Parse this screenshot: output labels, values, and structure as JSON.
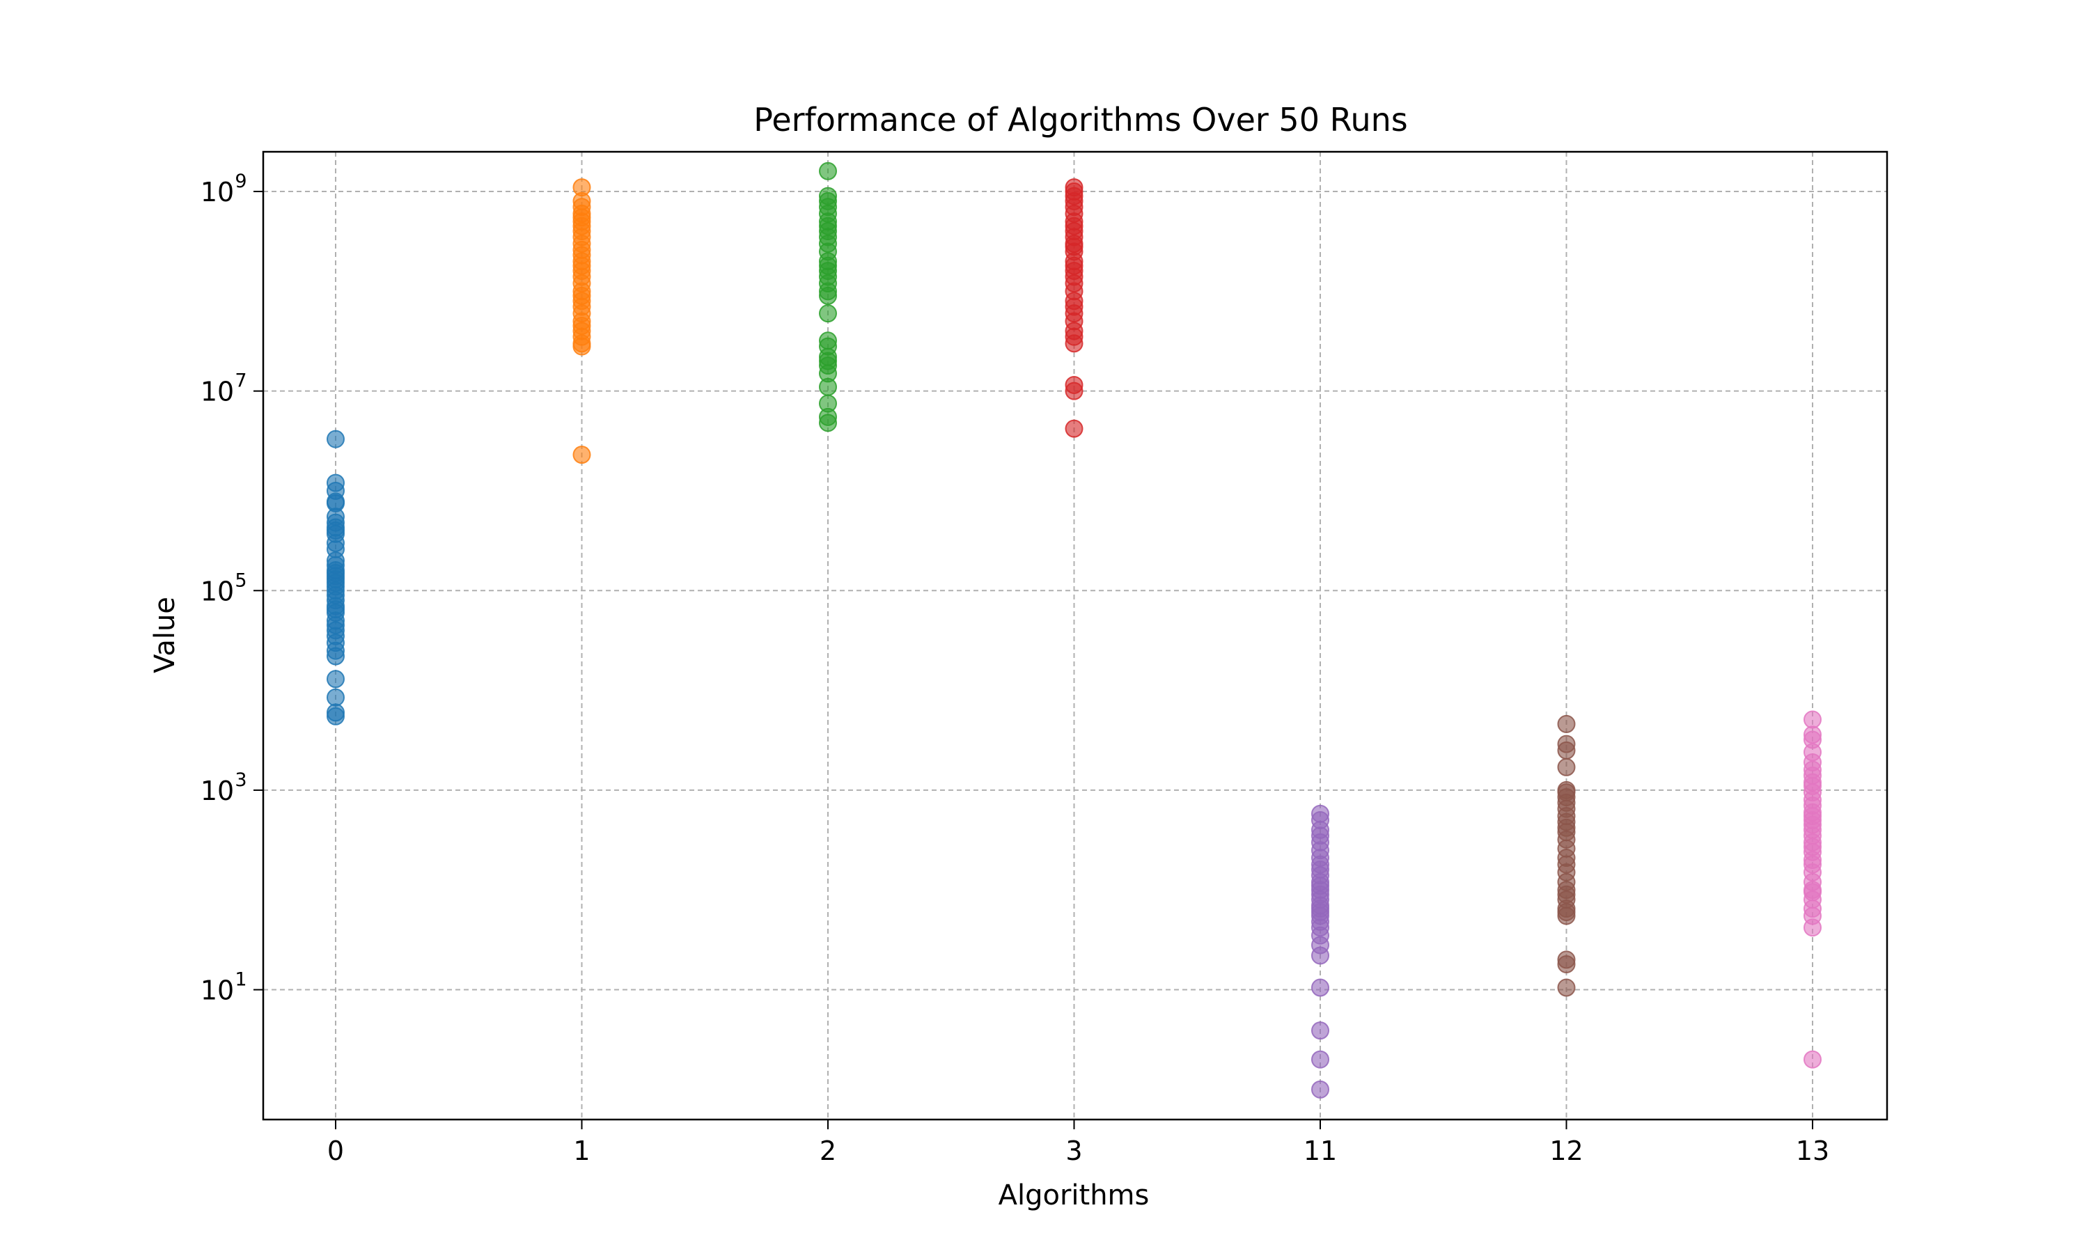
{
  "chart_data": {
    "type": "scatter",
    "title": "Performance of Algorithms Over 50 Runs",
    "xlabel": "Algorithms",
    "ylabel": "Value",
    "categories": [
      "0",
      "1",
      "2",
      "3",
      "11",
      "12",
      "13"
    ],
    "yscale": "log",
    "ylim": [
      0.5,
      2500000000
    ],
    "yticks": [
      {
        "base": "10",
        "exp": "1",
        "value": 10
      },
      {
        "base": "10",
        "exp": "3",
        "value": 1000
      },
      {
        "base": "10",
        "exp": "5",
        "value": 100000
      },
      {
        "base": "10",
        "exp": "7",
        "value": 10000000
      },
      {
        "base": "10",
        "exp": "9",
        "value": 1000000000
      }
    ],
    "grid": true,
    "series": [
      {
        "category": "0",
        "color": "#1f77b4",
        "values": [
          3300000,
          1200000,
          1000000,
          780000,
          750000,
          550000,
          480000,
          430000,
          400000,
          370000,
          300000,
          260000,
          200000,
          180000,
          160000,
          150000,
          140000,
          130000,
          120000,
          110000,
          100000,
          90000,
          80000,
          70000,
          65000,
          60000,
          50000,
          45000,
          40000,
          35000,
          30000,
          25000,
          22000,
          13000,
          8500,
          6000,
          5500
        ]
      },
      {
        "category": "1",
        "color": "#ff7f0e",
        "values": [
          1100000000,
          800000000,
          700000000,
          600000000,
          550000000,
          500000000,
          450000000,
          400000000,
          350000000,
          300000000,
          260000000,
          230000000,
          200000000,
          180000000,
          160000000,
          140000000,
          120000000,
          100000000,
          90000000,
          80000000,
          70000000,
          60000000,
          50000000,
          45000000,
          40000000,
          35000000,
          30000000,
          28000000,
          2300000
        ]
      },
      {
        "category": "2",
        "color": "#2ca02c",
        "values": [
          1600000000,
          900000000,
          800000000,
          700000000,
          600000000,
          500000000,
          450000000,
          400000000,
          350000000,
          300000000,
          250000000,
          200000000,
          180000000,
          160000000,
          140000000,
          120000000,
          100000000,
          90000000,
          60000000,
          32000000,
          28000000,
          22000000,
          20000000,
          18000000,
          15000000,
          11000000,
          7500000,
          5500000,
          4800000
        ]
      },
      {
        "category": "3",
        "color": "#d62728",
        "values": [
          1100000000,
          1000000000,
          900000000,
          800000000,
          700000000,
          600000000,
          500000000,
          450000000,
          400000000,
          350000000,
          300000000,
          280000000,
          250000000,
          200000000,
          180000000,
          160000000,
          140000000,
          120000000,
          100000000,
          80000000,
          70000000,
          60000000,
          50000000,
          40000000,
          35000000,
          30000000,
          11500000,
          10000000,
          4200000
        ]
      },
      {
        "category": "11",
        "color": "#9467bd",
        "values": [
          580,
          500,
          400,
          350,
          300,
          250,
          210,
          180,
          160,
          140,
          120,
          110,
          100,
          90,
          80,
          70,
          65,
          60,
          55,
          48,
          42,
          35,
          28,
          22,
          10.5,
          3.9,
          2.0,
          1.0
        ]
      },
      {
        "category": "12",
        "color": "#8c564b",
        "values": [
          4600,
          2900,
          2500,
          1700,
          1000,
          950,
          850,
          750,
          650,
          550,
          480,
          420,
          380,
          320,
          260,
          210,
          180,
          150,
          120,
          100,
          90,
          80,
          65,
          60,
          55,
          20,
          18,
          10.5
        ]
      },
      {
        "category": "13",
        "color": "#e377c2",
        "values": [
          5100,
          3600,
          3200,
          2400,
          1900,
          1600,
          1400,
          1200,
          1100,
          950,
          800,
          700,
          600,
          550,
          500,
          450,
          400,
          350,
          300,
          270,
          240,
          200,
          180,
          150,
          120,
          100,
          95,
          80,
          65,
          55,
          42,
          2.0
        ]
      }
    ]
  }
}
